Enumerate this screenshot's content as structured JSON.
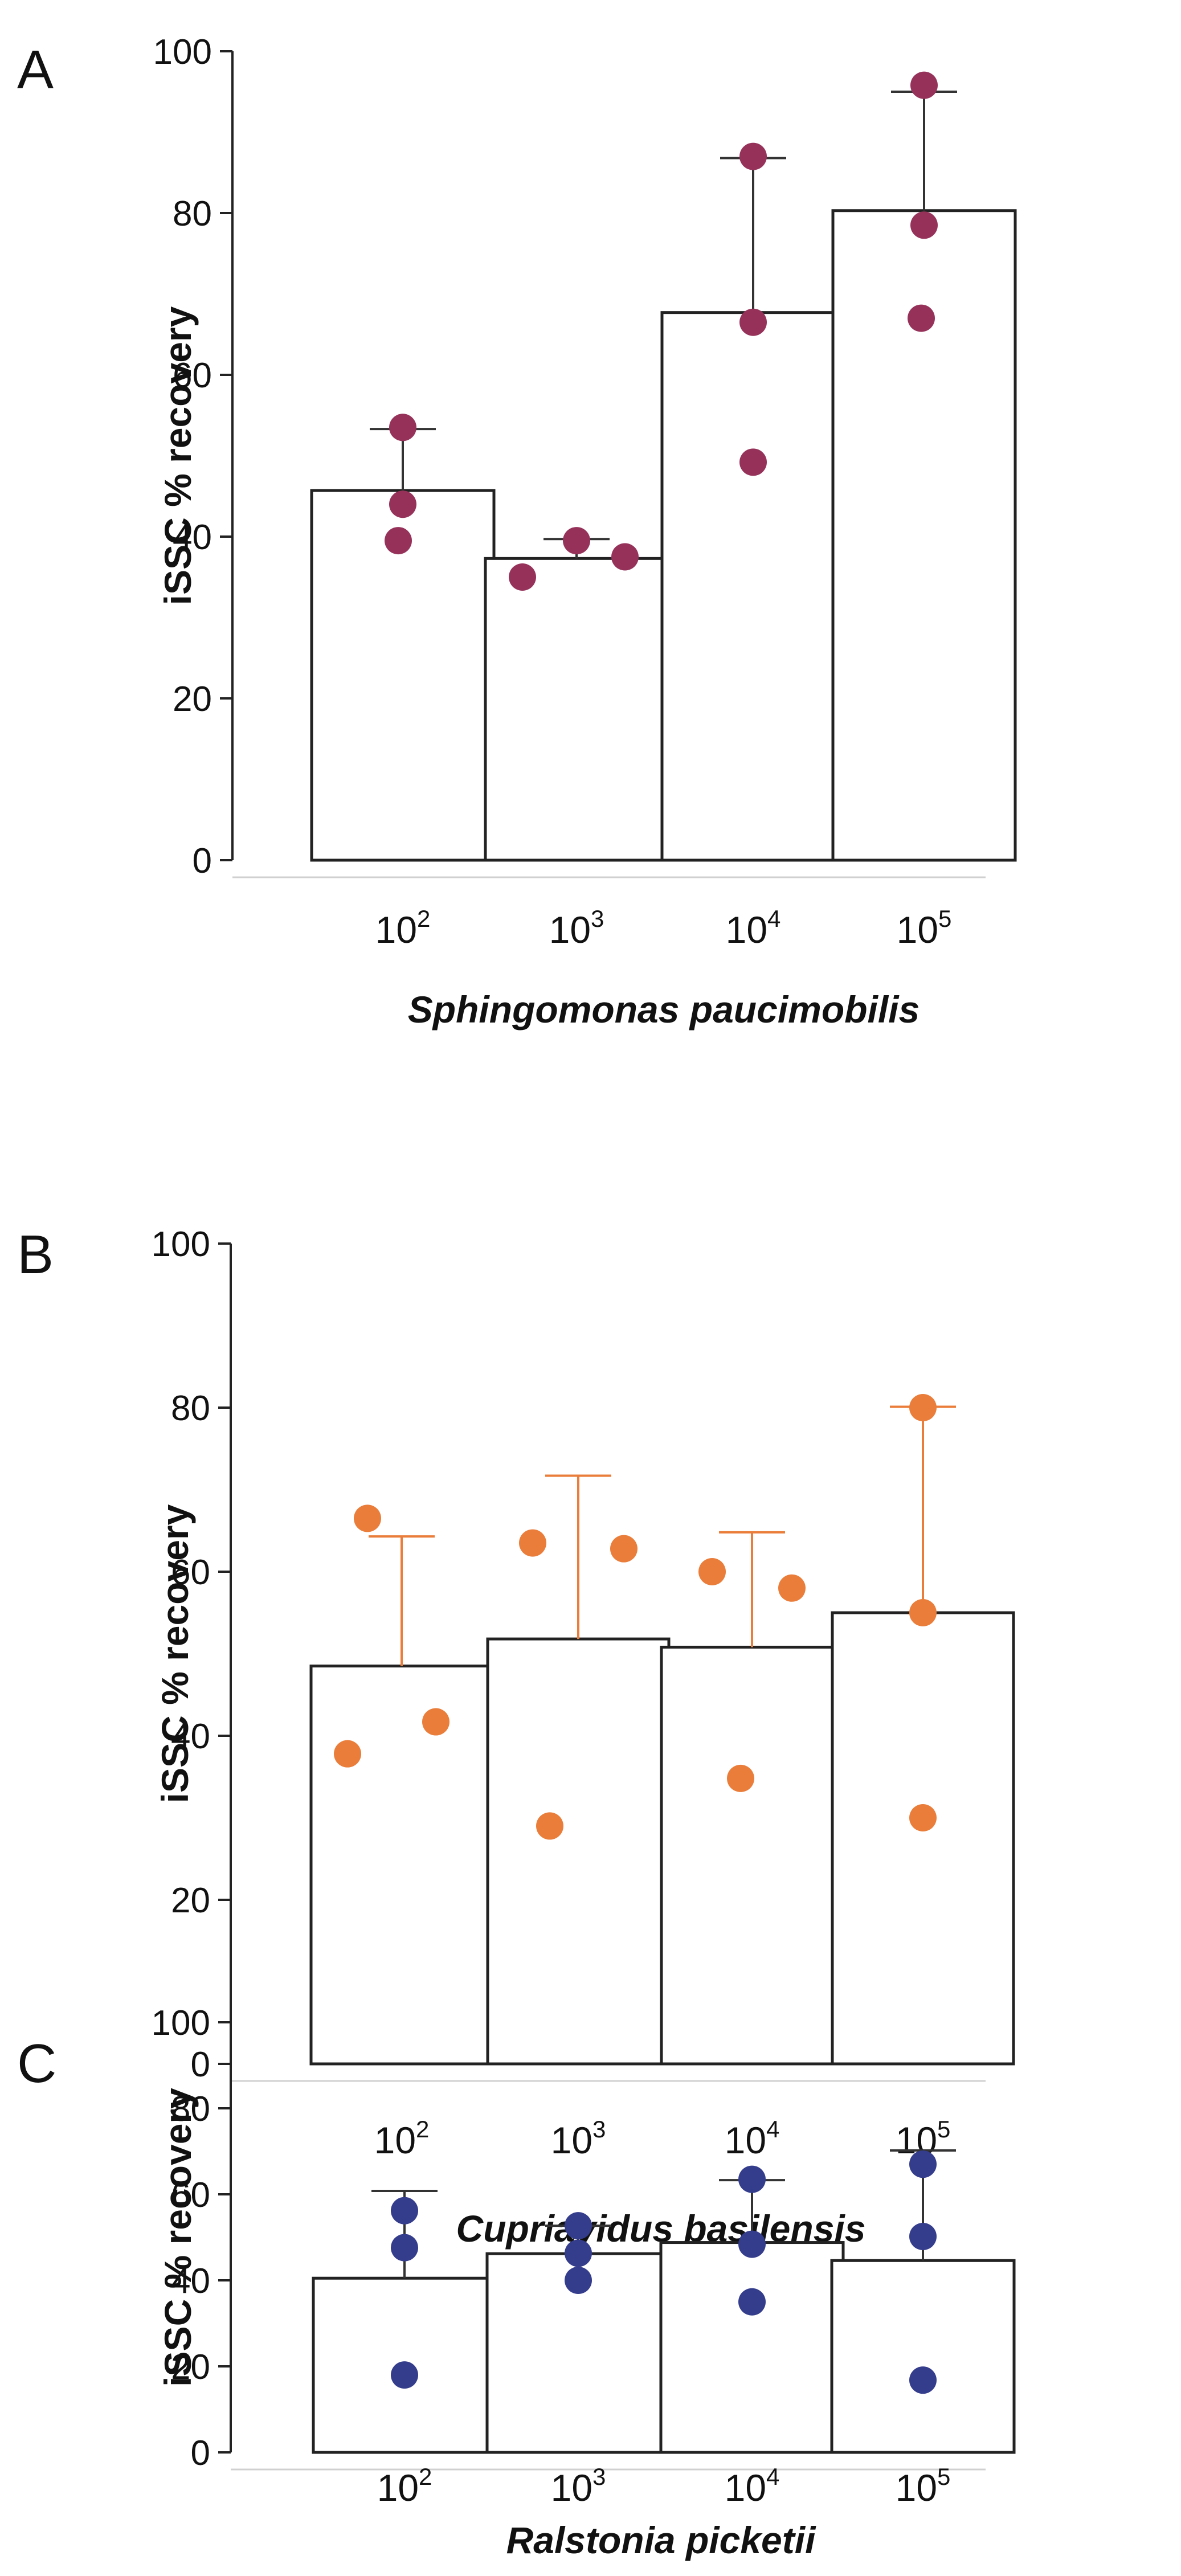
{
  "chart_data": [
    {
      "panel_label": "A",
      "type": "bar",
      "xlabel": "Sphingomonas paucimobilis",
      "ylabel": "iSSC % recovery",
      "categories": [
        "10^2",
        "10^3",
        "10^4",
        "10^5"
      ],
      "category_labels": [
        {
          "base": "10",
          "exp": "2"
        },
        {
          "base": "10",
          "exp": "3"
        },
        {
          "base": "10",
          "exp": "4"
        },
        {
          "base": "10",
          "exp": "5"
        }
      ],
      "ylim": [
        0,
        100
      ],
      "yticks": [
        0,
        20,
        40,
        60,
        80,
        100
      ],
      "point_color": "#96325a",
      "bar_fill": "#ffffff",
      "bar_edge": "#222222",
      "means": [
        45.7,
        37.3,
        67.7,
        80.3
      ],
      "error_upper": [
        53.3,
        39.7,
        86.8,
        95.0
      ],
      "points": [
        [
          53.5,
          44.0,
          39.5
        ],
        [
          35.0,
          39.5,
          37.5
        ],
        [
          87.0,
          66.5,
          49.2
        ],
        [
          95.8,
          78.5,
          67.0
        ]
      ]
    },
    {
      "panel_label": "B",
      "type": "bar",
      "xlabel": "Cupriavidus basilensis",
      "ylabel": "iSSC % recovery",
      "categories": [
        "10^2",
        "10^3",
        "10^4",
        "10^5"
      ],
      "category_labels": [
        {
          "base": "10",
          "exp": "2"
        },
        {
          "base": "10",
          "exp": "3"
        },
        {
          "base": "10",
          "exp": "4"
        },
        {
          "base": "10",
          "exp": "5"
        }
      ],
      "ylim": [
        0,
        100
      ],
      "yticks": [
        0,
        20,
        40,
        60,
        80,
        100
      ],
      "point_color": "#ea7d3a",
      "bar_fill": "#ffffff",
      "bar_edge": "#222222",
      "means": [
        48.5,
        51.8,
        50.8,
        55.0
      ],
      "error_upper": [
        64.3,
        71.7,
        64.8,
        80.1
      ],
      "points": [
        [
          66.5,
          41.7,
          37.8
        ],
        [
          63.5,
          62.8,
          29.0
        ],
        [
          60.0,
          58.0,
          34.8
        ],
        [
          80.0,
          55.0,
          30.0
        ]
      ]
    },
    {
      "panel_label": "C",
      "type": "bar",
      "xlabel": "Ralstonia picketii",
      "ylabel": "iSSC % recovery",
      "categories": [
        "10^2",
        "10^3",
        "10^4",
        "10^5"
      ],
      "category_labels": [
        {
          "base": "10",
          "exp": "2"
        },
        {
          "base": "10",
          "exp": "3"
        },
        {
          "base": "10",
          "exp": "4"
        },
        {
          "base": "10",
          "exp": "5"
        }
      ],
      "ylim": [
        0,
        100
      ],
      "yticks": [
        0,
        20,
        40,
        60,
        80,
        100
      ],
      "point_color": "#343c8c",
      "bar_fill": "#ffffff",
      "bar_edge": "#222222",
      "means": [
        40.5,
        46.2,
        48.8,
        44.6
      ],
      "error_upper": [
        60.8,
        52.7,
        63.3,
        70.2
      ],
      "points": [
        [
          56.2,
          47.6,
          18.0
        ],
        [
          52.7,
          46.3,
          40.0
        ],
        [
          63.5,
          48.4,
          35.0
        ],
        [
          67.0,
          50.2,
          16.8
        ]
      ]
    }
  ]
}
